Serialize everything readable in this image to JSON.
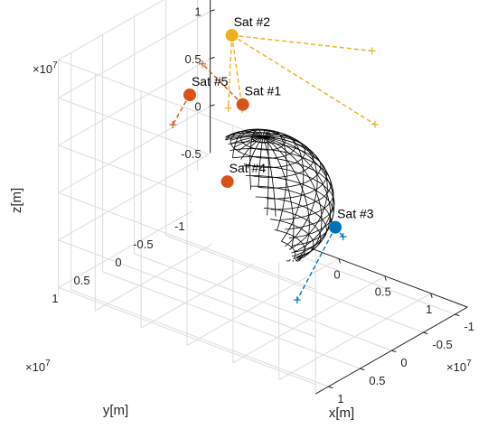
{
  "chart_data": {
    "type": "scatter",
    "title": "",
    "xlabel": "x[m]",
    "ylabel": "y[m]",
    "zlabel": "z[m]",
    "axis_multiplier": "×10",
    "axis_multiplier_exponent": "7",
    "xlim": [
      -14000000.0,
      14000000.0
    ],
    "ylim": [
      -12000000.0,
      12000000.0
    ],
    "zlim": [
      -11000000.0,
      14000000.0
    ],
    "grid": true,
    "x_ticks": [
      {
        "value": -10000000.0,
        "label": "-1"
      },
      {
        "value": -5000000.0,
        "label": "-0.5"
      },
      {
        "value": 0,
        "label": "0"
      },
      {
        "value": 5000000.0,
        "label": "0.5"
      },
      {
        "value": 10000000.0,
        "label": "1"
      }
    ],
    "y_ticks": [
      {
        "value": -10000000.0,
        "label": "-1"
      },
      {
        "value": -5000000.0,
        "label": "-0.5"
      },
      {
        "value": 0,
        "label": "0"
      },
      {
        "value": 5000000.0,
        "label": "0.5"
      },
      {
        "value": 10000000.0,
        "label": "1"
      }
    ],
    "z_ticks": [
      {
        "value": -10000000.0,
        "label": "-1"
      },
      {
        "value": -5000000.0,
        "label": "-0.5"
      },
      {
        "value": 0,
        "label": "0"
      },
      {
        "value": 5000000.0,
        "label": "0.5"
      },
      {
        "value": 10000000.0,
        "label": "1"
      }
    ],
    "earth": {
      "radius": 6400000.0,
      "center": [
        0,
        0,
        0
      ]
    },
    "colors": {
      "orange": "#D95319",
      "yellow": "#EDB120",
      "blue": "#0072BD",
      "grid": "#dcdcdc",
      "axis": "#262626",
      "earth": "#000000"
    },
    "satellites": [
      {
        "name": "Sat #1",
        "color": "#D95319",
        "position": [
          -5500000.0,
          -4800000.0,
          6000000.0
        ],
        "links": [
          [
            -9000000.0,
            -3500000.0,
            9500000.0
          ]
        ]
      },
      {
        "name": "Sat #2",
        "color": "#EDB120",
        "position": [
          -6000000.0,
          -3800000.0,
          13500000.0
        ],
        "links": [
          [
            5000000.0,
            -10000000.0,
            13500000.0
          ],
          [
            6000000.0,
            -9000000.0,
            6500000.0
          ],
          [
            -5000000.0,
            -4000000.0,
            6000000.0
          ],
          [
            -5500000.0,
            -2500000.0,
            6500000.0
          ]
        ]
      },
      {
        "name": "Sat #3",
        "color": "#0072BD",
        "position": [
          6500000.0,
          -2000000.0,
          -1500000.0
        ],
        "links": [
          [
            7000000.0,
            -2500000.0,
            -2500000.0
          ],
          [
            2000000.0,
            -2500000.0,
            -11000000.0
          ]
        ]
      },
      {
        "name": "Sat #4",
        "color": "#D95319",
        "position": [
          -8000000.0,
          -6000000.0,
          -3500000.0
        ],
        "links": [
          [
            -10000000.0,
            -4500000.0,
            -3000000.0
          ]
        ]
      },
      {
        "name": "Sat #5",
        "color": "#D95319",
        "position": [
          -9000000.0,
          -1500000.0,
          7000000.0
        ],
        "links": [
          [
            -10500000.0,
            -1000000.0,
            3500000.0
          ]
        ]
      }
    ]
  }
}
